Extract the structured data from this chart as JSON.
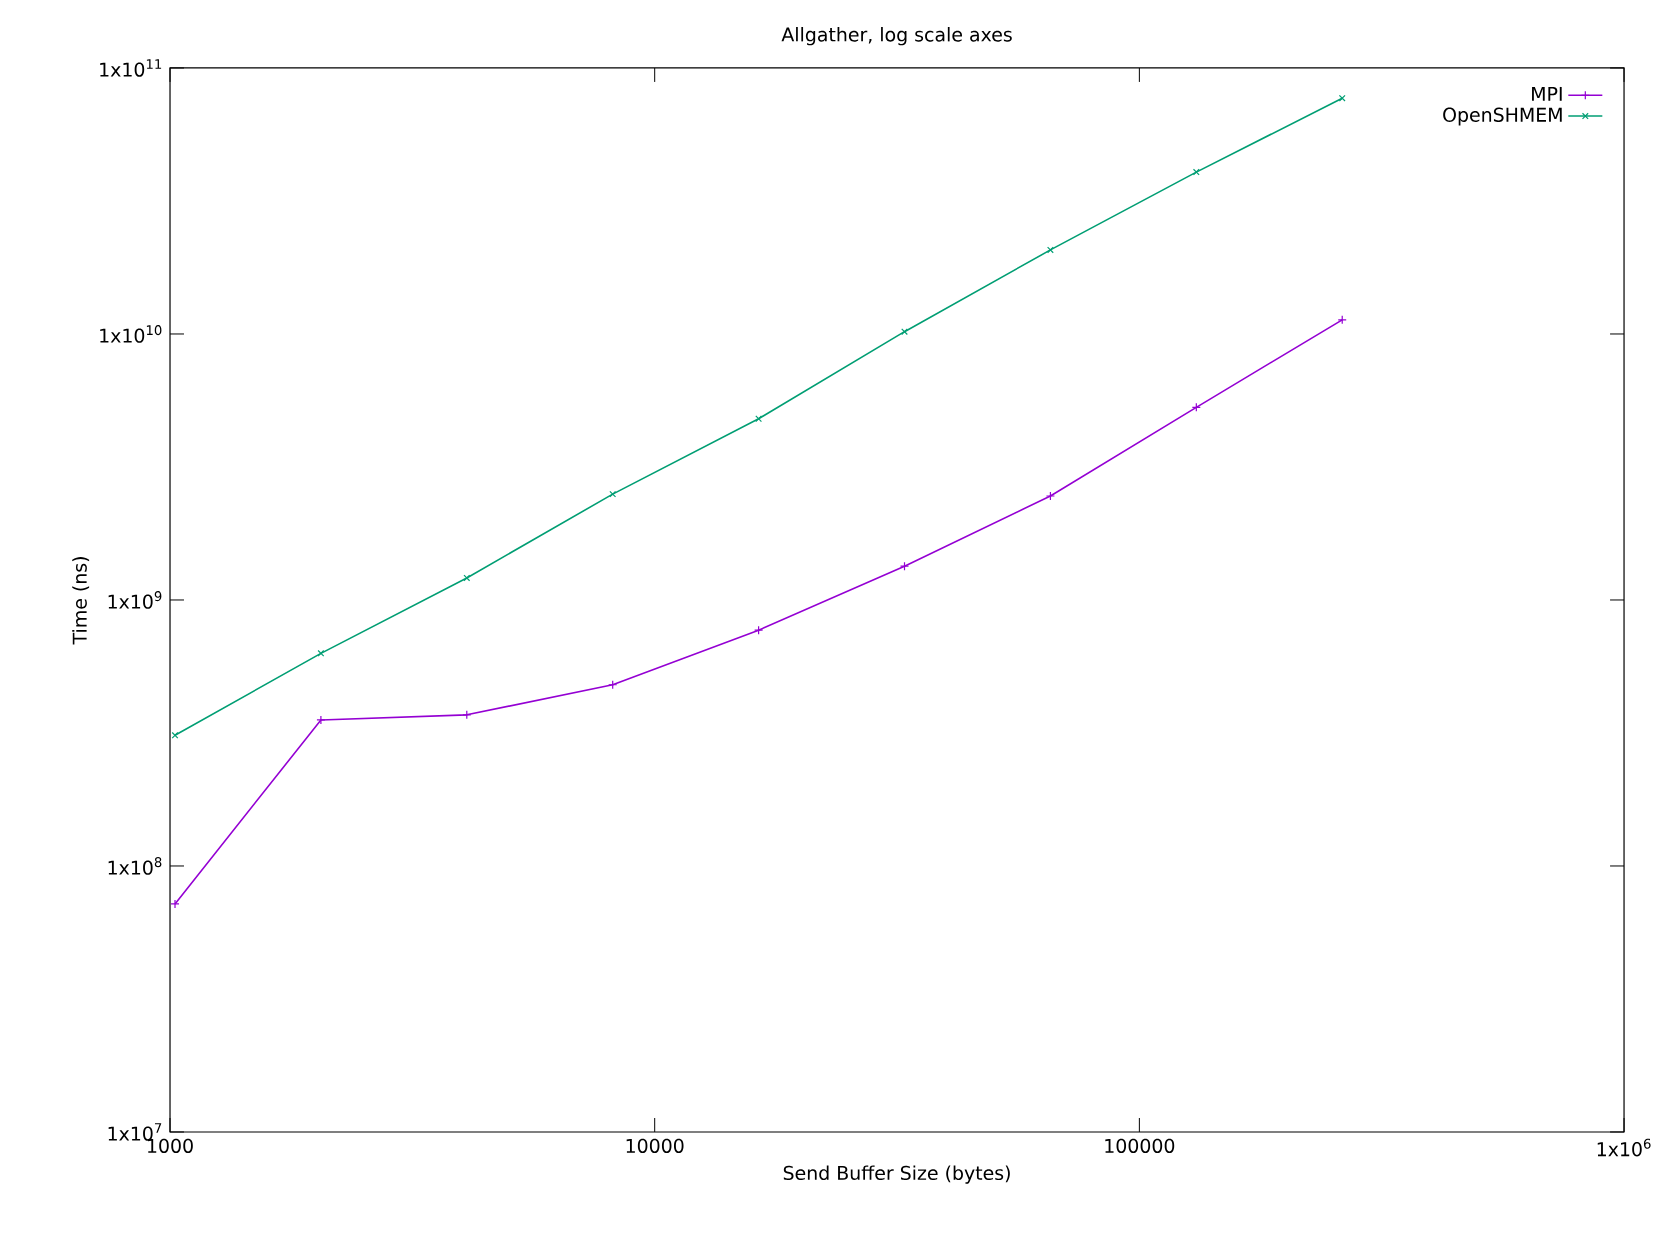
{
  "chart_data": {
    "type": "line",
    "title": "Allgather, log scale axes",
    "xlabel": "Send Buffer Size (bytes)",
    "ylabel": "Time (ns)",
    "x": [
      1024,
      2048,
      4096,
      8192,
      16384,
      32768,
      65536,
      131072,
      262144
    ],
    "series": [
      {
        "name": "MPI",
        "color": "#9400d3",
        "marker": "plus",
        "values": [
          72000000,
          354000000,
          370000000,
          480000000,
          770000000,
          1340000000,
          2460000000,
          5300000000,
          11300000000
        ]
      },
      {
        "name": "OpenSHMEM",
        "color": "#009e73",
        "marker": "cross",
        "values": [
          310000000,
          630000000,
          1210000000,
          2500000000,
          4800000000,
          10200000000,
          20700000000,
          40600000000,
          77000000000
        ]
      }
    ],
    "log": "xy",
    "xlim": [
      1000,
      1000000
    ],
    "ylim": [
      10000000,
      100000000000
    ],
    "xticks": [
      1000,
      10000,
      100000,
      {
        "value": 1000000,
        "label": "1x10$^{6}$"
      }
    ],
    "yticks": [
      {
        "value": 10000000,
        "label": "1x10$^{7}$"
      },
      {
        "value": 100000000,
        "label": "1x10$^{8}$"
      },
      {
        "value": 1000000000,
        "label": "1x10$^{9}$"
      },
      {
        "value": 10000000000,
        "label": "1x10$^{10}$"
      },
      {
        "value": 100000000000,
        "label": "1x10$^{11}$"
      }
    ],
    "grid": false,
    "legend": "top right"
  }
}
